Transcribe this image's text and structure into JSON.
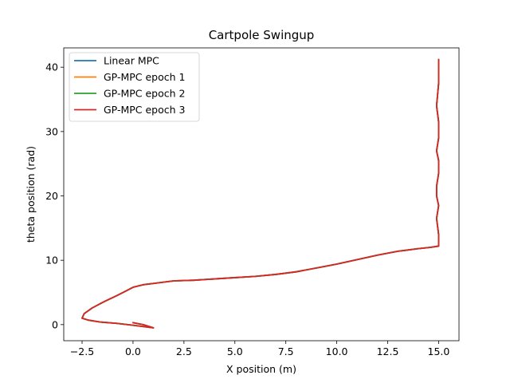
{
  "chart_data": {
    "type": "line",
    "title": "Cartpole Swingup",
    "xlabel": "X position (m)",
    "ylabel": "theta position (rad)",
    "xlim": [
      -3.4,
      16.0
    ],
    "ylim": [
      -2.5,
      43.0
    ],
    "xticks": [
      -2.5,
      0.0,
      2.5,
      5.0,
      7.5,
      10.0,
      12.5,
      15.0
    ],
    "xtick_labels": [
      "−2.5",
      "0.0",
      "2.5",
      "5.0",
      "7.5",
      "10.0",
      "12.5",
      "15.0"
    ],
    "yticks": [
      0,
      10,
      20,
      30,
      40
    ],
    "ytick_labels": [
      "0",
      "10",
      "20",
      "30",
      "40"
    ],
    "grid": false,
    "legend_position": "top-left",
    "series": [
      {
        "name": "Linear MPC",
        "color": "#1f77b4",
        "x": [
          0.0,
          0.5,
          1.0,
          0.5,
          0.0,
          -0.8,
          -1.6,
          -2.2,
          -2.5,
          -2.4,
          -2.0,
          -1.4,
          -0.8,
          -0.3,
          0.0,
          0.5,
          1.0,
          2.0,
          3.0,
          4.0,
          5.0,
          6.0,
          7.0,
          8.0,
          9.0,
          10.0,
          11.0,
          12.0,
          13.0,
          14.0,
          14.6,
          15.0,
          15.0,
          14.9,
          15.0,
          14.9,
          14.9,
          15.0,
          15.0,
          14.9,
          15.0,
          15.0,
          14.9,
          15.0,
          15.0
        ],
        "y": [
          0.3,
          0.0,
          -0.5,
          -0.3,
          -0.1,
          0.2,
          0.4,
          0.7,
          1.0,
          1.7,
          2.6,
          3.6,
          4.5,
          5.3,
          5.8,
          6.2,
          6.4,
          6.8,
          6.9,
          7.1,
          7.3,
          7.5,
          7.8,
          8.2,
          8.8,
          9.4,
          10.1,
          10.8,
          11.4,
          11.8,
          12.0,
          12.2,
          14.0,
          16.5,
          18.5,
          20.0,
          21.5,
          23.5,
          25.5,
          27.0,
          29.0,
          31.5,
          34.0,
          37.5,
          41.2
        ]
      },
      {
        "name": "GP-MPC epoch 1",
        "color": "#ff7f0e",
        "x": [
          0.0,
          0.5,
          1.0,
          0.5,
          0.0,
          -0.8,
          -1.6,
          -2.2,
          -2.5,
          -2.4,
          -2.0,
          -1.4,
          -0.8,
          -0.3,
          0.0,
          0.5,
          1.0,
          2.0,
          3.0,
          4.0,
          5.0,
          6.0,
          7.0,
          8.0,
          9.0,
          10.0,
          11.0,
          12.0,
          13.0,
          14.0,
          14.6,
          15.0,
          15.0,
          14.9,
          15.0,
          14.9,
          14.9,
          15.0,
          15.0,
          14.9,
          15.0,
          15.0,
          14.9,
          15.0,
          15.0
        ],
        "y": [
          0.3,
          0.0,
          -0.5,
          -0.3,
          -0.1,
          0.2,
          0.4,
          0.7,
          1.0,
          1.7,
          2.6,
          3.6,
          4.5,
          5.3,
          5.8,
          6.2,
          6.4,
          6.8,
          6.9,
          7.1,
          7.3,
          7.5,
          7.8,
          8.2,
          8.8,
          9.4,
          10.1,
          10.8,
          11.4,
          11.8,
          12.0,
          12.2,
          14.0,
          16.5,
          18.5,
          20.0,
          21.5,
          23.5,
          25.5,
          27.0,
          29.0,
          31.5,
          34.0,
          37.5,
          41.2
        ]
      },
      {
        "name": "GP-MPC epoch 2",
        "color": "#2ca02c",
        "x": [
          0.0,
          0.5,
          1.0,
          0.5,
          0.0,
          -0.8,
          -1.6,
          -2.2,
          -2.5,
          -2.4,
          -2.0,
          -1.4,
          -0.8,
          -0.3,
          0.0,
          0.5,
          1.0,
          2.0,
          3.0,
          4.0,
          5.0,
          6.0,
          7.0,
          8.0,
          9.0,
          10.0,
          11.0,
          12.0,
          13.0,
          14.0,
          14.6,
          15.0,
          15.0,
          14.9,
          15.0,
          14.9,
          14.9,
          15.0,
          15.0,
          14.9,
          15.0,
          15.0,
          14.9,
          15.0,
          15.0
        ],
        "y": [
          0.3,
          0.0,
          -0.5,
          -0.3,
          -0.1,
          0.2,
          0.4,
          0.7,
          1.0,
          1.7,
          2.6,
          3.6,
          4.5,
          5.3,
          5.8,
          6.2,
          6.4,
          6.8,
          6.9,
          7.1,
          7.3,
          7.5,
          7.8,
          8.2,
          8.8,
          9.4,
          10.1,
          10.8,
          11.4,
          11.8,
          12.0,
          12.2,
          14.0,
          16.5,
          18.5,
          20.0,
          21.5,
          23.5,
          25.5,
          27.0,
          29.0,
          31.5,
          34.0,
          37.5,
          41.2
        ]
      },
      {
        "name": "GP-MPC epoch 3",
        "color": "#d62728",
        "x": [
          0.0,
          0.5,
          1.0,
          0.5,
          0.0,
          -0.8,
          -1.6,
          -2.2,
          -2.5,
          -2.4,
          -2.0,
          -1.4,
          -0.8,
          -0.3,
          0.0,
          0.5,
          1.0,
          2.0,
          3.0,
          4.0,
          5.0,
          6.0,
          7.0,
          8.0,
          9.0,
          10.0,
          11.0,
          12.0,
          13.0,
          14.0,
          14.6,
          15.0,
          15.0,
          14.9,
          15.0,
          14.9,
          14.9,
          15.0,
          15.0,
          14.9,
          15.0,
          15.0,
          14.9,
          15.0,
          15.0
        ],
        "y": [
          0.3,
          0.0,
          -0.5,
          -0.3,
          -0.1,
          0.2,
          0.4,
          0.7,
          1.0,
          1.7,
          2.6,
          3.6,
          4.5,
          5.3,
          5.8,
          6.2,
          6.4,
          6.8,
          6.9,
          7.1,
          7.3,
          7.5,
          7.8,
          8.2,
          8.8,
          9.4,
          10.1,
          10.8,
          11.4,
          11.8,
          12.0,
          12.2,
          14.0,
          16.5,
          18.5,
          20.0,
          21.5,
          23.5,
          25.5,
          27.0,
          29.0,
          31.5,
          34.0,
          37.5,
          41.2
        ]
      }
    ]
  }
}
